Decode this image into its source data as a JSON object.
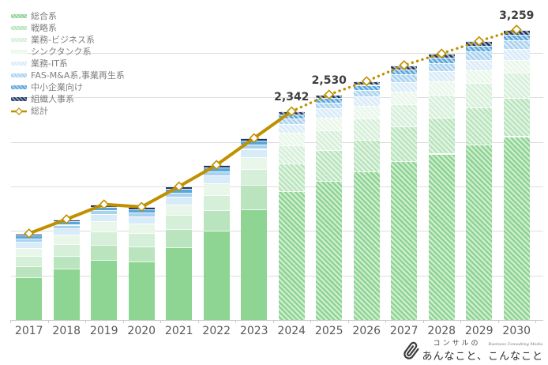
{
  "chart_data": {
    "type": "bar",
    "subtype": "stacked-bars-with-total-line",
    "title": "",
    "xlabel": "",
    "ylabel": "",
    "ylim": [
      0,
      3500
    ],
    "gridline_step": 500,
    "grid": true,
    "legend_position": "top-left",
    "categories": [
      "2017",
      "2018",
      "2019",
      "2020",
      "2021",
      "2022",
      "2023",
      "2024",
      "2025",
      "2026",
      "2027",
      "2028",
      "2029",
      "2030"
    ],
    "forecast_start_index": 7,
    "series": [
      {
        "name": "総合系",
        "color": "#8ed492",
        "values": [
          475,
          575,
          675,
          660,
          820,
          1000,
          1240,
          1443,
          1564,
          1666,
          1784,
          1867,
          1971,
          2062
        ]
      },
      {
        "name": "戦略系",
        "color": "#b9e4bd",
        "values": [
          125,
          145,
          170,
          165,
          200,
          235,
          275,
          315,
          340,
          360,
          385,
          400,
          415,
          429
        ]
      },
      {
        "name": "業務-ビジネス系",
        "color": "#d6efd9",
        "values": [
          120,
          135,
          150,
          148,
          160,
          170,
          177,
          205,
          225,
          235,
          250,
          265,
          272,
          281
        ]
      },
      {
        "name": "シンクタンク系",
        "color": "#e9f6ea",
        "values": [
          90,
          100,
          110,
          108,
          118,
          126,
          133,
          138,
          140,
          142,
          144,
          146,
          147,
          148
        ]
      },
      {
        "name": "業務-IT系",
        "color": "#d8ebf8",
        "values": [
          65,
          72,
          80,
          78,
          85,
          90,
          95,
          100,
          104,
          107,
          110,
          113,
          115,
          118
        ]
      },
      {
        "name": "FAS-M&A系,事業再生系",
        "color": "#a9d2ef",
        "values": [
          38,
          42,
          46,
          45,
          48,
          49,
          50,
          60,
          68,
          75,
          84,
          90,
          97,
          103
        ]
      },
      {
        "name": "中小企業向け",
        "color": "#58a6dc",
        "values": [
          33,
          36,
          39,
          38,
          40,
          41,
          41,
          46,
          50,
          53,
          57,
          60,
          62,
          65
        ]
      },
      {
        "name": "組織人事系",
        "color": "#203864",
        "values": [
          25,
          26,
          27,
          27,
          28,
          29,
          30,
          35,
          39,
          42,
          46,
          49,
          51,
          53
        ]
      }
    ],
    "total_line": {
      "name": "総計",
      "color": "#bf9000",
      "marker": "diamond-white-fill",
      "solid_until_index": 7,
      "values": [
        971,
        1131,
        1297,
        1269,
        1499,
        1740,
        2041,
        2342,
        2530,
        2680,
        2860,
        2990,
        3130,
        3259
      ]
    },
    "data_labels": [
      {
        "index": 7,
        "text": "2,342"
      },
      {
        "index": 8,
        "text": "2,530"
      },
      {
        "index": 13,
        "text": "3,259"
      }
    ]
  },
  "legend": {
    "total_label": "総計"
  },
  "footer_logo": {
    "top_text": "コンサルの",
    "tagline": "Business Consulting Media",
    "main_text": "あんなこと、こんなこと"
  },
  "colors": {
    "line": "#bf9000",
    "gridline": "#dddddd",
    "axis_text": "#595959",
    "legend_text": "#7f7f7f",
    "data_label_text": "#3d3d3d"
  }
}
